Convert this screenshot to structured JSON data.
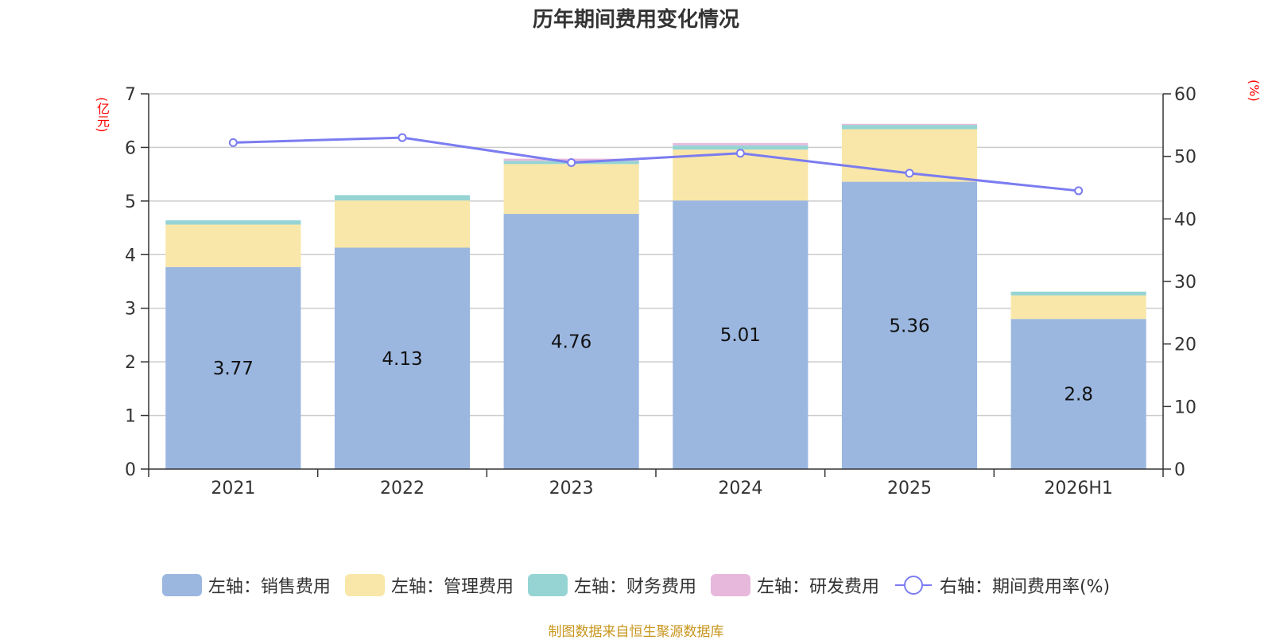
{
  "chart_data": {
    "type": "bar",
    "title": "历年期间费用变化情况",
    "left_unit": "(亿元)",
    "right_unit": "(%)",
    "categories": [
      "2021",
      "2022",
      "2023",
      "2024",
      "2025",
      "2026H1"
    ],
    "ylim_left": [
      0,
      7
    ],
    "yticks_left": [
      0,
      1,
      2,
      3,
      4,
      5,
      6,
      7
    ],
    "ylim_right": [
      0,
      60
    ],
    "yticks_right": [
      0,
      10,
      20,
      30,
      40,
      50,
      60
    ],
    "grid": true,
    "legend_position": "bottom",
    "series": [
      {
        "name": "左轴：销售费用",
        "axis": "left",
        "kind": "bar",
        "color": "#9bb7e0",
        "values": [
          3.77,
          4.13,
          4.76,
          5.01,
          5.36,
          2.8
        ],
        "labels": [
          "3.77",
          "4.13",
          "4.76",
          "5.01",
          "5.36",
          "2.8"
        ]
      },
      {
        "name": "左轴：管理费用",
        "axis": "left",
        "kind": "bar",
        "color": "#f8e7a8",
        "values": [
          0.79,
          0.88,
          0.93,
          0.95,
          0.98,
          0.44
        ]
      },
      {
        "name": "左轴：财务费用",
        "axis": "left",
        "kind": "bar",
        "color": "#96d4d4",
        "values": [
          0.08,
          0.1,
          0.06,
          0.08,
          0.08,
          0.07
        ]
      },
      {
        "name": "左轴：研发费用",
        "axis": "left",
        "kind": "bar",
        "color": "#e8b8dc",
        "values": [
          0.0,
          0.0,
          0.04,
          0.04,
          0.02,
          0.0
        ]
      },
      {
        "name": "右轴：期间费用率(%)",
        "axis": "right",
        "kind": "line",
        "color": "#7b7cf0",
        "values": [
          52.2,
          53.0,
          49.0,
          50.5,
          47.3,
          44.5
        ]
      }
    ]
  },
  "source": "制图数据来自恒生聚源数据库"
}
